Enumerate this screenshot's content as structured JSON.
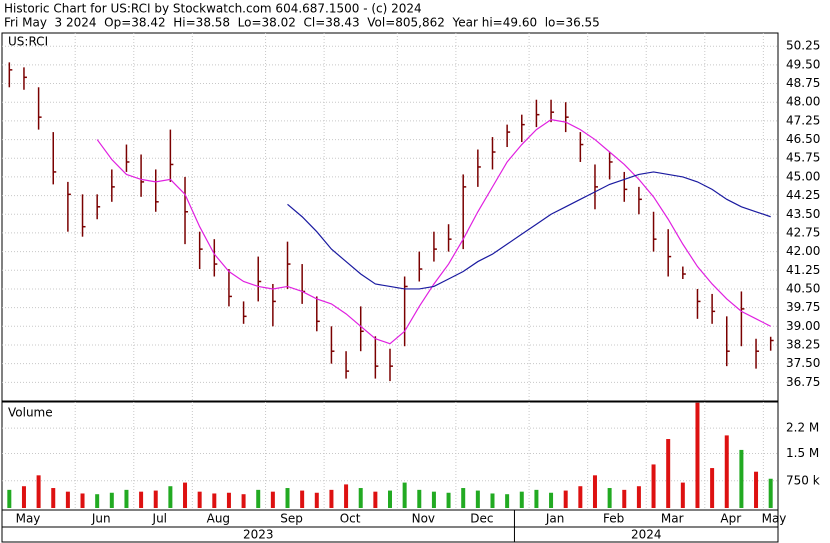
{
  "chart_data": {
    "type": "ohlc",
    "header": [
      "Historic Chart for US:RCI by Stockwatch.com 604.687.1500 - (c) 2024",
      "Fri May  3 2024  Op=38.42  Hi=38.58  Lo=38.02  Cl=38.43  Vol=805,862  Year hi=49.60  lo=36.55"
    ],
    "symbol": "US:RCI",
    "volume_title": "Volume",
    "categories": [
      "May",
      null,
      null,
      null,
      null,
      "Jun",
      null,
      null,
      null,
      "Jul",
      null,
      null,
      null,
      "Aug",
      null,
      null,
      null,
      null,
      "Sep",
      null,
      null,
      null,
      "Oct",
      null,
      null,
      null,
      null,
      "Nov",
      null,
      null,
      null,
      "Dec",
      null,
      null,
      null,
      null,
      "Jan",
      null,
      null,
      null,
      "Feb",
      null,
      null,
      null,
      "Mar",
      null,
      null,
      null,
      "Apr",
      null,
      null,
      null,
      "May"
    ],
    "years": [
      {
        "label": "2023",
        "from": 0
      },
      {
        "label": "2024",
        "from": 35
      }
    ],
    "high": [
      49.6,
      49.4,
      48.6,
      46.8,
      44.8,
      44.3,
      44.3,
      45.3,
      46.3,
      45.9,
      45.3,
      46.9,
      45.0,
      42.8,
      42.5,
      41.3,
      40.0,
      41.8,
      40.7,
      42.4,
      41.5,
      40.2,
      39.0,
      38.0,
      39.8,
      38.6,
      38.1,
      41.0,
      42.0,
      42.8,
      43.1,
      45.1,
      46.1,
      46.6,
      47.1,
      47.5,
      48.1,
      48.1,
      48.0,
      46.8,
      45.5,
      46.0,
      45.2,
      44.6,
      43.6,
      42.9,
      41.4,
      40.5,
      40.3,
      39.4,
      40.4,
      38.5,
      38.58
    ],
    "low": [
      48.6,
      48.5,
      46.9,
      44.7,
      42.8,
      42.6,
      43.3,
      44.0,
      45.2,
      44.2,
      43.6,
      44.8,
      42.3,
      41.3,
      41.0,
      39.8,
      39.1,
      40.0,
      39.0,
      40.5,
      39.9,
      38.8,
      37.5,
      36.9,
      38.0,
      36.9,
      36.8,
      38.2,
      40.8,
      41.6,
      42.0,
      42.1,
      44.6,
      45.3,
      46.2,
      46.4,
      47.0,
      47.2,
      46.8,
      45.6,
      43.7,
      44.9,
      44.0,
      43.5,
      42.0,
      41.0,
      40.9,
      39.3,
      39.1,
      37.4,
      38.2,
      37.3,
      38.02
    ],
    "close": [
      49.3,
      49.0,
      47.4,
      45.2,
      44.3,
      43.0,
      43.8,
      44.6,
      45.6,
      44.8,
      44.0,
      45.5,
      43.6,
      42.1,
      41.5,
      40.2,
      39.4,
      40.8,
      40.0,
      41.5,
      40.4,
      39.2,
      38.0,
      37.2,
      38.8,
      37.4,
      37.4,
      40.6,
      41.3,
      42.1,
      42.5,
      44.6,
      45.4,
      46.0,
      46.8,
      47.1,
      47.5,
      47.6,
      47.4,
      46.3,
      44.6,
      45.6,
      44.5,
      44.1,
      42.5,
      41.8,
      41.1,
      40.0,
      39.6,
      38.0,
      39.7,
      38.0,
      38.43
    ],
    "bar_color": "#7a0000",
    "series": [
      {
        "name": "MA50",
        "color": "#e020e0",
        "values": [
          null,
          null,
          null,
          null,
          null,
          null,
          46.5,
          45.7,
          45.1,
          44.9,
          44.8,
          44.9,
          44.3,
          43.0,
          41.9,
          41.2,
          40.8,
          40.6,
          40.5,
          40.6,
          40.4,
          40.1,
          39.9,
          39.5,
          39.0,
          38.5,
          38.3,
          38.8,
          39.8,
          40.7,
          41.5,
          42.5,
          43.6,
          44.6,
          45.6,
          46.3,
          46.9,
          47.3,
          47.2,
          46.9,
          46.5,
          46.0,
          45.5,
          44.9,
          44.2,
          43.3,
          42.3,
          41.4,
          40.7,
          40.1,
          39.6,
          39.3,
          39.0
        ]
      },
      {
        "name": "MA200",
        "color": "#1a1aa0",
        "values": [
          null,
          null,
          null,
          null,
          null,
          null,
          null,
          null,
          null,
          null,
          null,
          null,
          null,
          null,
          null,
          null,
          null,
          null,
          null,
          43.9,
          43.4,
          42.8,
          42.1,
          41.6,
          41.1,
          40.7,
          40.6,
          40.5,
          40.5,
          40.6,
          40.9,
          41.2,
          41.6,
          41.9,
          42.3,
          42.7,
          43.1,
          43.5,
          43.8,
          44.1,
          44.4,
          44.7,
          44.9,
          45.1,
          45.2,
          45.1,
          45.0,
          44.8,
          44.5,
          44.1,
          43.8,
          43.6,
          43.4
        ]
      }
    ],
    "volume": [
      500000,
      600000,
      900000,
      550000,
      450000,
      400000,
      380000,
      420000,
      500000,
      450000,
      480000,
      600000,
      700000,
      450000,
      400000,
      420000,
      380000,
      500000,
      450000,
      550000,
      480000,
      420000,
      500000,
      650000,
      550000,
      450000,
      480000,
      700000,
      500000,
      450000,
      420000,
      550000,
      480000,
      400000,
      380000,
      450000,
      500000,
      420000,
      480000,
      600000,
      900000,
      550000,
      500000,
      600000,
      1200000,
      1900000,
      700000,
      2900000,
      1100000,
      2000000,
      1600000,
      1000000,
      805862
    ],
    "up_color": "#22aa22",
    "down_color": "#dd1111",
    "ylim": [
      36.0,
      50.78
    ],
    "yticks": [
      36.75,
      {
        "value": 37.5,
        "label": "37.50"
      },
      38.25,
      {
        "value": 39,
        "label": "39.00"
      },
      39.75,
      {
        "value": 40.5,
        "label": "40.50"
      },
      41.25,
      {
        "value": 42,
        "label": "42.00"
      },
      42.75,
      {
        "value": 43.5,
        "label": "43.50"
      },
      44.25,
      {
        "value": 45,
        "label": "45.00"
      },
      45.75,
      {
        "value": 46.5,
        "label": "46.50"
      },
      47.25,
      {
        "value": 48,
        "label": "48.00"
      },
      48.75,
      {
        "value": 49.5,
        "label": "49.50"
      },
      50.25
    ],
    "vlim": [
      0,
      2920000
    ],
    "vticks": [
      {
        "value": 750000,
        "label": "750 k"
      },
      {
        "value": 1500000,
        "label": "1.5 M"
      },
      {
        "value": 2200000,
        "label": "2.2 M"
      }
    ],
    "grid": true
  }
}
